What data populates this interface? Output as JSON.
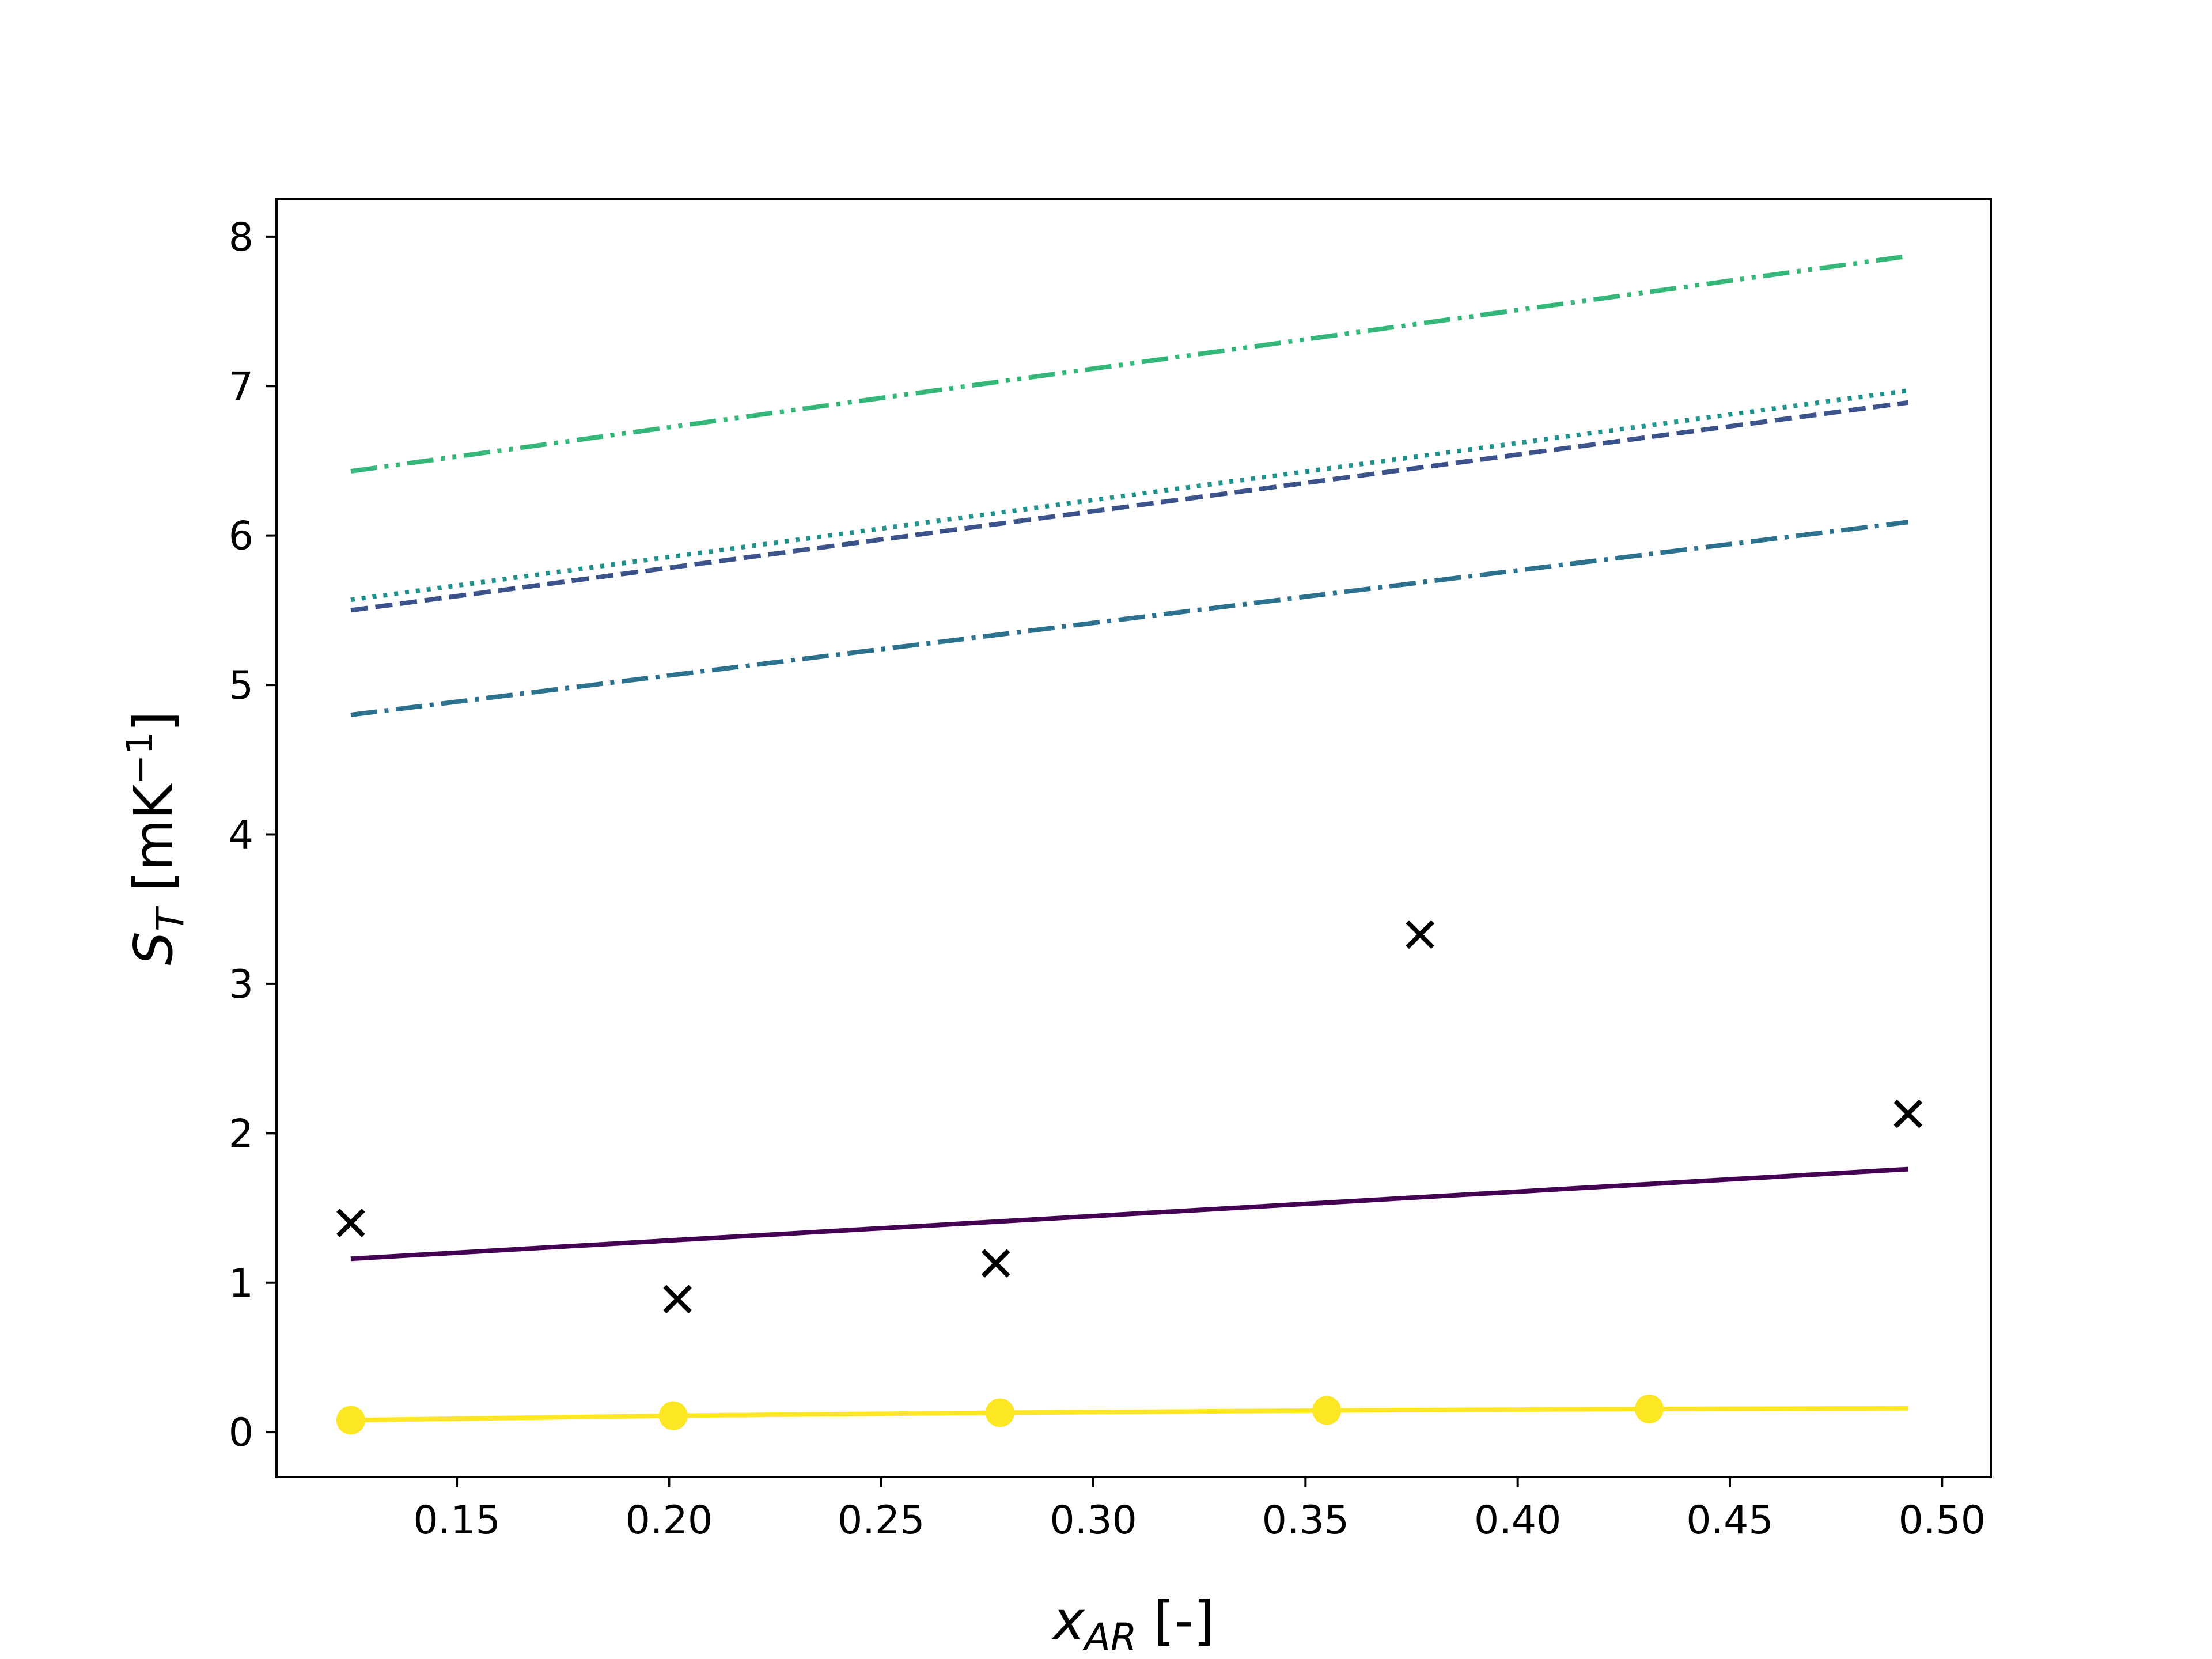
{
  "chart_data": {
    "type": "line",
    "xlabel": {
      "main": "x",
      "sub": "AR",
      "rest": " [-]"
    },
    "ylabel": {
      "main": "S",
      "sub": "T",
      "rest": " [mK",
      "sup": "−1",
      "end": "]"
    },
    "xlim": [
      0.1075,
      0.5115
    ],
    "ylim": [
      -0.3,
      8.25
    ],
    "x_ticks": [
      0.15,
      0.2,
      0.25,
      0.3,
      0.35,
      0.4,
      0.45,
      0.5
    ],
    "x_tick_labels": [
      "0.15",
      "0.20",
      "0.25",
      "0.30",
      "0.35",
      "0.40",
      "0.45",
      "0.50"
    ],
    "y_ticks": [
      0,
      1,
      2,
      3,
      4,
      5,
      6,
      7,
      8
    ],
    "y_tick_labels": [
      "0",
      "1",
      "2",
      "3",
      "4",
      "5",
      "6",
      "7",
      "8"
    ],
    "grid": false,
    "series": [
      {
        "color": "#440154",
        "style": "solid",
        "x": [
          0.125,
          0.492
        ],
        "y": [
          1.16,
          1.76
        ]
      },
      {
        "color": "#3b528b",
        "style": "dashed",
        "x": [
          0.125,
          0.492
        ],
        "y": [
          5.5,
          6.89
        ]
      },
      {
        "color": "#21918c",
        "style": "dotted",
        "x": [
          0.125,
          0.492
        ],
        "y": [
          5.57,
          6.97
        ]
      },
      {
        "color": "#2c728e",
        "style": "dashdot",
        "x": [
          0.125,
          0.492
        ],
        "y": [
          4.8,
          6.09
        ]
      },
      {
        "color": "#35b779",
        "style": "dashdotdot",
        "x": [
          0.125,
          0.492
        ],
        "y": [
          6.43,
          7.87
        ]
      },
      {
        "color": "#fde725",
        "style": "solid",
        "marker": "circle",
        "x": [
          0.125,
          0.201,
          0.278,
          0.355,
          0.431,
          0.492
        ],
        "y": [
          0.08,
          0.11,
          0.13,
          0.145,
          0.155,
          0.16
        ],
        "marker_x": [
          0.125,
          0.201,
          0.278,
          0.355,
          0.431
        ],
        "marker_y": [
          0.08,
          0.11,
          0.13,
          0.145,
          0.155
        ]
      },
      {
        "color": "#000000",
        "style": "none",
        "marker": "x",
        "x": [
          0.125,
          0.202,
          0.277,
          0.377,
          0.492
        ],
        "y": [
          1.4,
          0.89,
          1.13,
          3.33,
          2.13
        ]
      }
    ]
  }
}
